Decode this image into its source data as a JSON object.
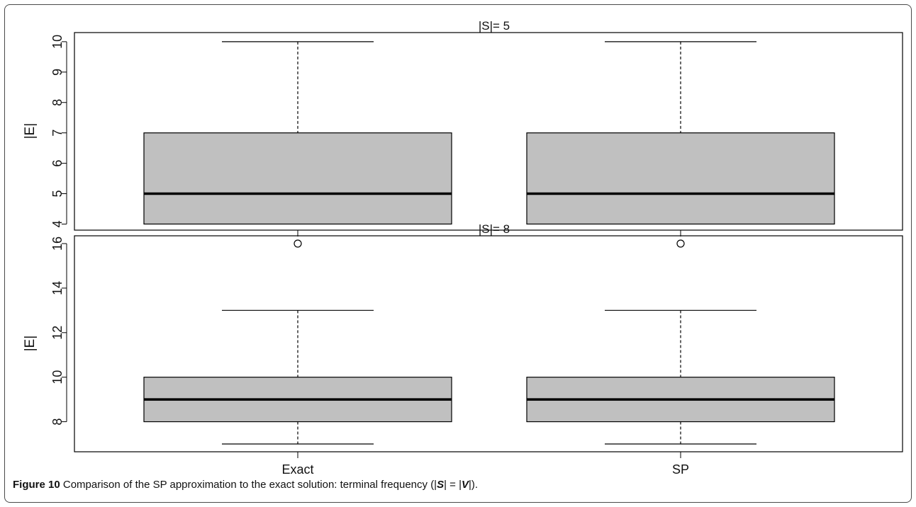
{
  "chart_data": [
    {
      "type": "boxplot",
      "title": "|S|= 5",
      "ylabel": "|E|",
      "ylim": [
        3.8,
        10.3
      ],
      "yticks": [
        4,
        5,
        6,
        7,
        8,
        9,
        10
      ],
      "categories": [
        "Exact",
        "SP"
      ],
      "show_x_labels": false,
      "boxes": [
        {
          "category": "Exact",
          "min": 4,
          "q1": 4,
          "median": 5,
          "q3": 7,
          "max": 10,
          "outliers": []
        },
        {
          "category": "SP",
          "min": 4,
          "q1": 4,
          "median": 5,
          "q3": 7,
          "max": 10,
          "outliers": []
        }
      ]
    },
    {
      "type": "boxplot",
      "title": "|S|= 8",
      "ylabel": "|E|",
      "ylim": [
        6.65,
        16.35
      ],
      "yticks": [
        8,
        10,
        12,
        14,
        16
      ],
      "categories": [
        "Exact",
        "SP"
      ],
      "show_x_labels": true,
      "boxes": [
        {
          "category": "Exact",
          "min": 7,
          "q1": 8,
          "median": 9,
          "q3": 10,
          "max": 13,
          "outliers": [
            16
          ]
        },
        {
          "category": "SP",
          "min": 7,
          "q1": 8,
          "median": 9,
          "q3": 10,
          "max": 13,
          "outliers": [
            16
          ]
        }
      ]
    }
  ],
  "caption": {
    "label": "Figure 10",
    "text_before": " Comparison of the SP approximation to the exact solution: terminal frequency (|",
    "s_var": "S",
    "text_mid": "| = |",
    "v_var": "V",
    "text_after": "|)."
  },
  "colors": {
    "box_fill": "#c0c0c0",
    "stroke": "#000000"
  }
}
